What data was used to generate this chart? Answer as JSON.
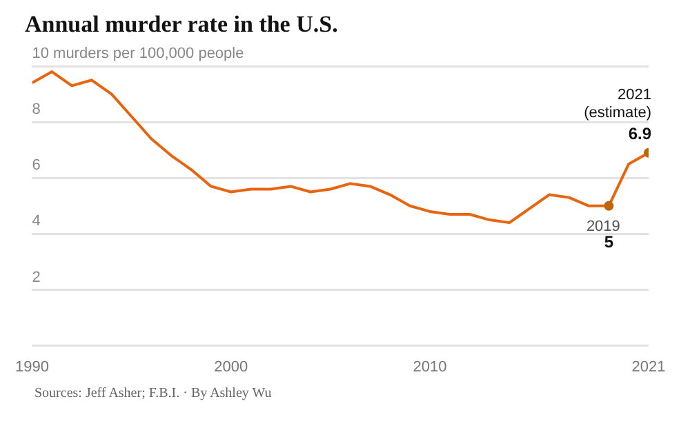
{
  "chart_data": {
    "type": "line",
    "title": "Annual murder rate in the U.S.",
    "x": [
      1990,
      1991,
      1992,
      1993,
      1994,
      1995,
      1996,
      1997,
      1998,
      1999,
      2000,
      2001,
      2002,
      2003,
      2004,
      2005,
      2006,
      2007,
      2008,
      2009,
      2010,
      2011,
      2012,
      2013,
      2014,
      2015,
      2016,
      2017,
      2018,
      2019,
      2020,
      2021
    ],
    "series": [
      {
        "color": "#e8650f",
        "values": [
          9.4,
          9.8,
          9.3,
          9.5,
          9.0,
          8.2,
          7.4,
          6.8,
          6.3,
          5.7,
          5.5,
          5.6,
          5.6,
          5.7,
          5.5,
          5.6,
          5.8,
          5.7,
          5.4,
          5.0,
          4.8,
          4.7,
          4.7,
          4.5,
          4.4,
          4.9,
          5.4,
          5.3,
          5.0,
          5.0,
          6.5,
          6.9
        ],
        "value_labels": [
          null,
          null,
          null,
          null,
          null,
          null,
          null,
          null,
          null,
          null,
          null,
          null,
          null,
          null,
          null,
          null,
          null,
          null,
          null,
          null,
          null,
          null,
          null,
          null,
          null,
          null,
          null,
          null,
          null,
          "5",
          null,
          "6.9"
        ]
      }
    ],
    "xlim": [
      1990,
      2021
    ],
    "xticks": [
      1990,
      2000,
      2010,
      2021
    ],
    "ylim": [
      0,
      10
    ],
    "yticks": [
      {
        "value": 0,
        "label": null
      },
      2,
      4,
      6,
      8,
      {
        "value": 10,
        "label": "10 murders per 100,000 people"
      }
    ],
    "grid": "y",
    "line_style": "solid",
    "annotations": [
      {
        "text": "2021\n(estimate)",
        "x": 2021,
        "y": 6.9
      },
      {
        "text": "2019",
        "x": 2019,
        "y": 5.0
      },
      "Sources: Jeff Asher; F.B.I. · By Ashley Wu"
    ]
  }
}
